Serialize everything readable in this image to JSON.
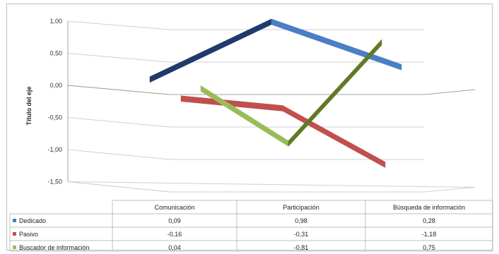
{
  "chart_data": {
    "type": "line",
    "subtype": "3d-line",
    "title": "",
    "ylabel": "Título del eje",
    "ylim": [
      -1.5,
      1.0
    ],
    "yticks": [
      "1,00",
      "0,50",
      "0,00",
      "-0,50",
      "-1,00",
      "-1,50"
    ],
    "categories": [
      "Comunicación",
      "Participación",
      "Búsqueda de información"
    ],
    "grid": true,
    "legend": "data-table",
    "series": [
      {
        "name": "Dedicado",
        "values": [
          0.09,
          0.98,
          0.28
        ],
        "labels": [
          "0,09",
          "0,98",
          "0,28"
        ],
        "color": "#4a7ec5",
        "dark_color": "#1f3a6b"
      },
      {
        "name": "Pasivo",
        "values": [
          -0.16,
          -0.31,
          -1.18
        ],
        "labels": [
          "-0,16",
          "-0,31",
          "-1,18"
        ],
        "color": "#c0504d",
        "dark_color": "#8a2d2a"
      },
      {
        "name": "Buscador de información",
        "values": [
          0.04,
          -0.81,
          0.75
        ],
        "labels": [
          "0,04",
          "-0,81",
          "0,75"
        ],
        "color": "#9bbb59",
        "dark_color": "#5f7a25"
      }
    ]
  }
}
